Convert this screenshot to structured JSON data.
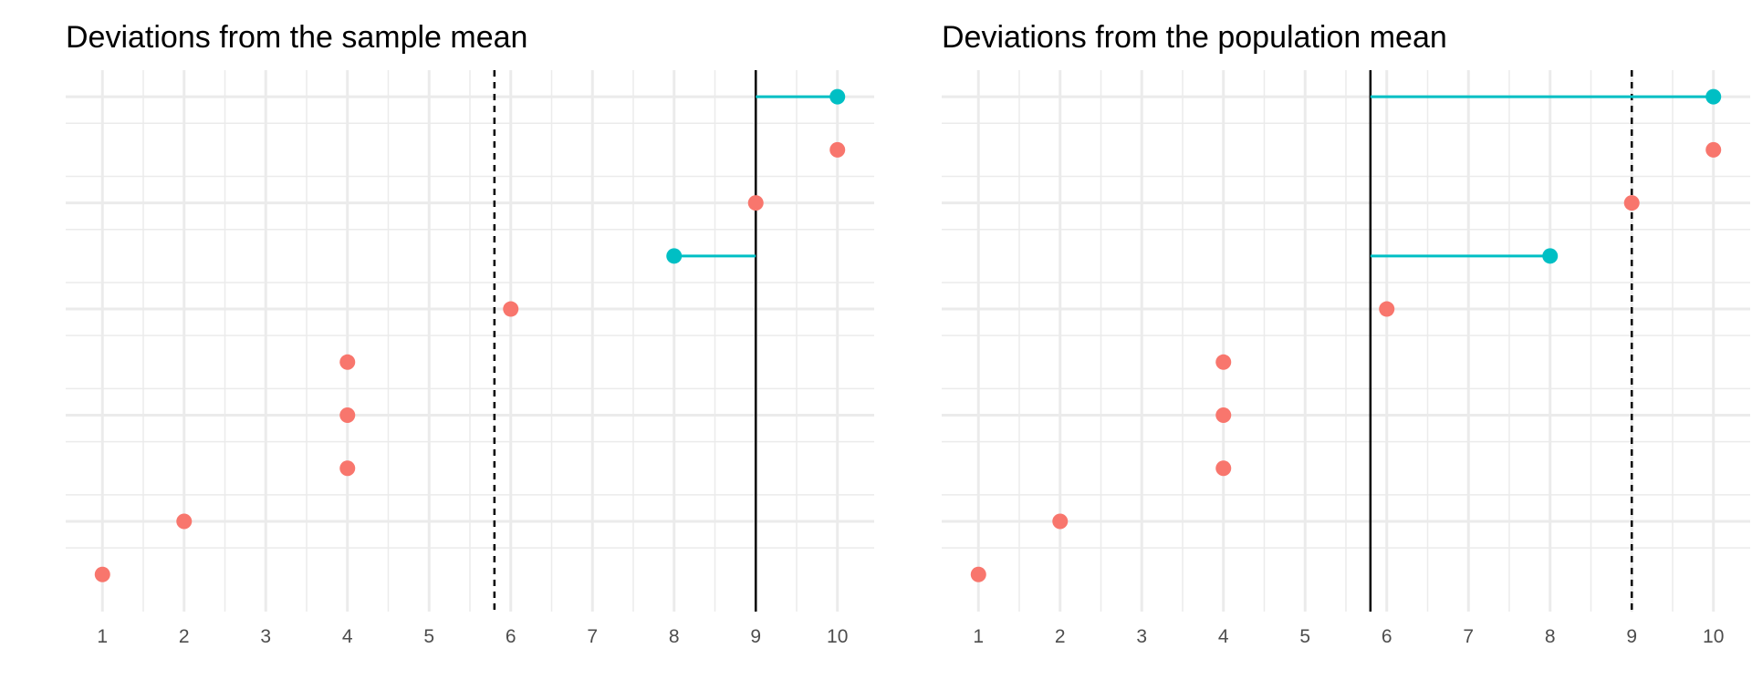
{
  "chart_data": [
    {
      "type": "scatter",
      "title": "Deviations from the sample mean",
      "xlabel": "",
      "ylabel": "",
      "xlim": [
        0.55,
        10.45
      ],
      "x_ticks": [
        "1",
        "2",
        "3",
        "4",
        "5",
        "6",
        "7",
        "8",
        "9",
        "10"
      ],
      "grid": true,
      "legend": "none",
      "points": [
        {
          "x": 10,
          "color": "#00BFC4"
        },
        {
          "x": 10,
          "color": "#F8766D"
        },
        {
          "x": 9,
          "color": "#F8766D"
        },
        {
          "x": 8,
          "color": "#00BFC4"
        },
        {
          "x": 6,
          "color": "#F8766D"
        },
        {
          "x": 4,
          "color": "#F8766D"
        },
        {
          "x": 4,
          "color": "#F8766D"
        },
        {
          "x": 4,
          "color": "#F8766D"
        },
        {
          "x": 2,
          "color": "#F8766D"
        },
        {
          "x": 1,
          "color": "#F8766D"
        }
      ],
      "solid_line_x": 9,
      "dashed_line_x": 5.8,
      "segments": [
        {
          "row": 0,
          "from": 9,
          "to": 10
        },
        {
          "row": 3,
          "from": 9,
          "to": 8
        }
      ]
    },
    {
      "type": "scatter",
      "title": "Deviations from the population mean",
      "xlabel": "",
      "ylabel": "",
      "xlim": [
        0.55,
        10.45
      ],
      "x_ticks": [
        "1",
        "2",
        "3",
        "4",
        "5",
        "6",
        "7",
        "8",
        "9",
        "10"
      ],
      "grid": true,
      "legend": "none",
      "points": [
        {
          "x": 10,
          "color": "#00BFC4"
        },
        {
          "x": 10,
          "color": "#F8766D"
        },
        {
          "x": 9,
          "color": "#F8766D"
        },
        {
          "x": 8,
          "color": "#00BFC4"
        },
        {
          "x": 6,
          "color": "#F8766D"
        },
        {
          "x": 4,
          "color": "#F8766D"
        },
        {
          "x": 4,
          "color": "#F8766D"
        },
        {
          "x": 4,
          "color": "#F8766D"
        },
        {
          "x": 2,
          "color": "#F8766D"
        },
        {
          "x": 1,
          "color": "#F8766D"
        }
      ],
      "solid_line_x": 5.8,
      "dashed_line_x": 9,
      "segments": [
        {
          "row": 0,
          "from": 5.8,
          "to": 10
        },
        {
          "row": 3,
          "from": 5.8,
          "to": 8
        }
      ]
    }
  ],
  "colors": {
    "grid": "#ebebeb",
    "mean_line": "#000000",
    "deviation": "#00BFC4",
    "point": "#F8766D",
    "tick_text": "#4d4d4d"
  }
}
